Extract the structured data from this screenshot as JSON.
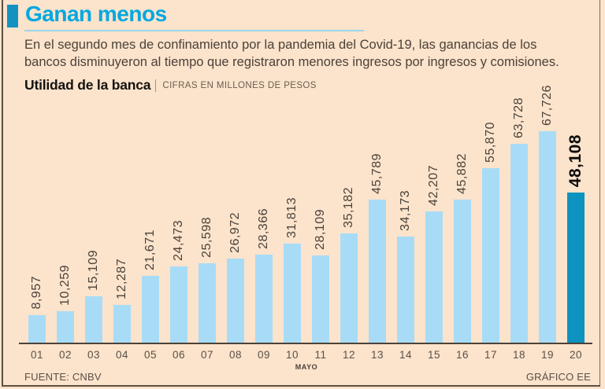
{
  "page": {
    "title": "Ganan menos",
    "intro": "En el segundo mes de confinamiento por la pandemia del Covid-19, las ganancias de los bancos disminuyeron al tiempo que registraron menores ingresos por ingresos y comisiones.",
    "source": "FUENTE: CNBV",
    "credit": "GRÁFICO EE"
  },
  "colors": {
    "background": "#fbe3cc",
    "accent_title": "#00a8e1",
    "title_bullet": "#1392c2",
    "bar": "#a8dcf6",
    "bar_highlight": "#0d93c0",
    "text": "#4c4238"
  },
  "chart_data": {
    "type": "bar",
    "title": "Utilidad de la banca",
    "units_label": "CIFRAS EN MILLONES DE PESOS",
    "xlabel": "MAYO",
    "ylim": [
      0,
      67726
    ],
    "grid": false,
    "legend": "none",
    "categories": [
      "01",
      "02",
      "03",
      "04",
      "05",
      "06",
      "07",
      "08",
      "09",
      "10",
      "11",
      "12",
      "13",
      "14",
      "15",
      "16",
      "17",
      "18",
      "19",
      "20"
    ],
    "values": [
      8957,
      10259,
      15109,
      12287,
      21671,
      24473,
      25598,
      26972,
      28366,
      31813,
      28109,
      35182,
      45789,
      34173,
      42207,
      45882,
      55870,
      63728,
      67726,
      48108
    ],
    "value_labels": [
      "8,957",
      "10,259",
      "15,109",
      "12,287",
      "21,671",
      "24,473",
      "25,598",
      "26,972",
      "28,366",
      "31,813",
      "28,109",
      "35,182",
      "45,789",
      "34,173",
      "42,207",
      "45,882",
      "55,870",
      "63,728",
      "67,726",
      "48,108"
    ],
    "highlight_index": 19,
    "bar_color": "#a8dcf6",
    "highlight_color": "#0d93c0"
  }
}
